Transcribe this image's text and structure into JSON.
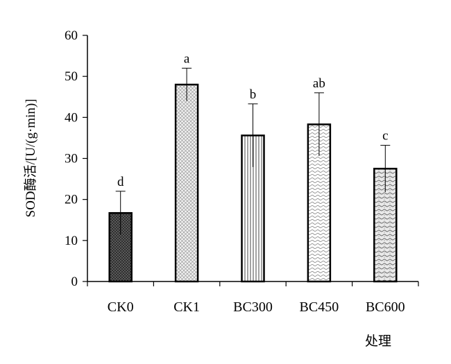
{
  "chart_data": {
    "type": "bar",
    "title": "",
    "xlabel": "处理",
    "ylabel": "SOD酶活/[U/(g·min)]",
    "ylim": [
      0,
      60
    ],
    "yticks": [
      0,
      10,
      20,
      30,
      40,
      50,
      60
    ],
    "grid": false,
    "categories": [
      "CK0",
      "CK1",
      "BC300",
      "BC450",
      "BC600"
    ],
    "values": [
      16.7,
      48.0,
      35.6,
      38.3,
      27.5
    ],
    "error_bars": [
      5.3,
      4.0,
      7.7,
      7.7,
      5.7
    ],
    "significance_letters": [
      "d",
      "a",
      "b",
      "ab",
      "c"
    ],
    "bar_patterns": [
      "dark-cross-hatch",
      "light-cross-hatch",
      "vertical-lines",
      "horizontal-waves",
      "wave-dots"
    ]
  }
}
